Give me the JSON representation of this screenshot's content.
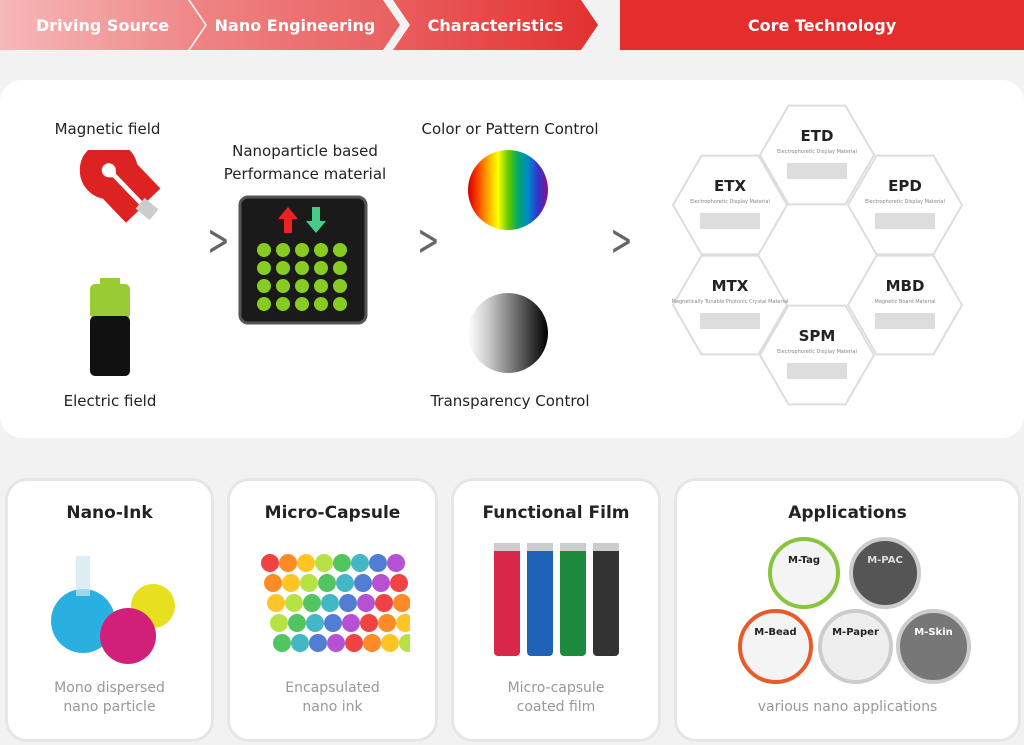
{
  "steps": [
    "Driving Source",
    "Nano Engineering",
    "Characteristics",
    "Core Technology"
  ],
  "sources": {
    "magnetic": "Magnetic field",
    "electric": "Electric field"
  },
  "engineering": {
    "title_line1": "Nanoparticle based",
    "title_line2": "Performance material"
  },
  "characteristics": {
    "color": "Color or Pattern Control",
    "transparency": "Transparency Control"
  },
  "core_tech": [
    {
      "name": "ETD",
      "desc": "Electrophoretic Display Material"
    },
    {
      "name": "ETX",
      "desc": "Electrophoretic Display Material"
    },
    {
      "name": "EPD",
      "desc": "Electrophoretic Display Material"
    },
    {
      "name": "MTX",
      "desc": "Magnetically Tunable Photonic Crystal Material"
    },
    {
      "name": "MBD",
      "desc": "Magnetic Board Material"
    },
    {
      "name": "SPM",
      "desc": "Electrophoretic Display Material"
    }
  ],
  "cards": [
    {
      "title": "Nano-Ink",
      "desc": "Mono dispersed\nnano particle"
    },
    {
      "title": "Micro-Capsule",
      "desc": "Encapsulated\nnano ink"
    },
    {
      "title": "Functional Film",
      "desc": "Micro-capsule\ncoated film"
    },
    {
      "title": "Applications",
      "desc": "various nano applications"
    }
  ],
  "apps": [
    "M-Tag",
    "M-PAC",
    "M-Bead",
    "M-Paper",
    "M-Skin"
  ],
  "colors": {
    "accent": "#e52d2d",
    "film": [
      "#d8294b",
      "#1f63b8",
      "#1d8a3e",
      "#333333"
    ]
  }
}
